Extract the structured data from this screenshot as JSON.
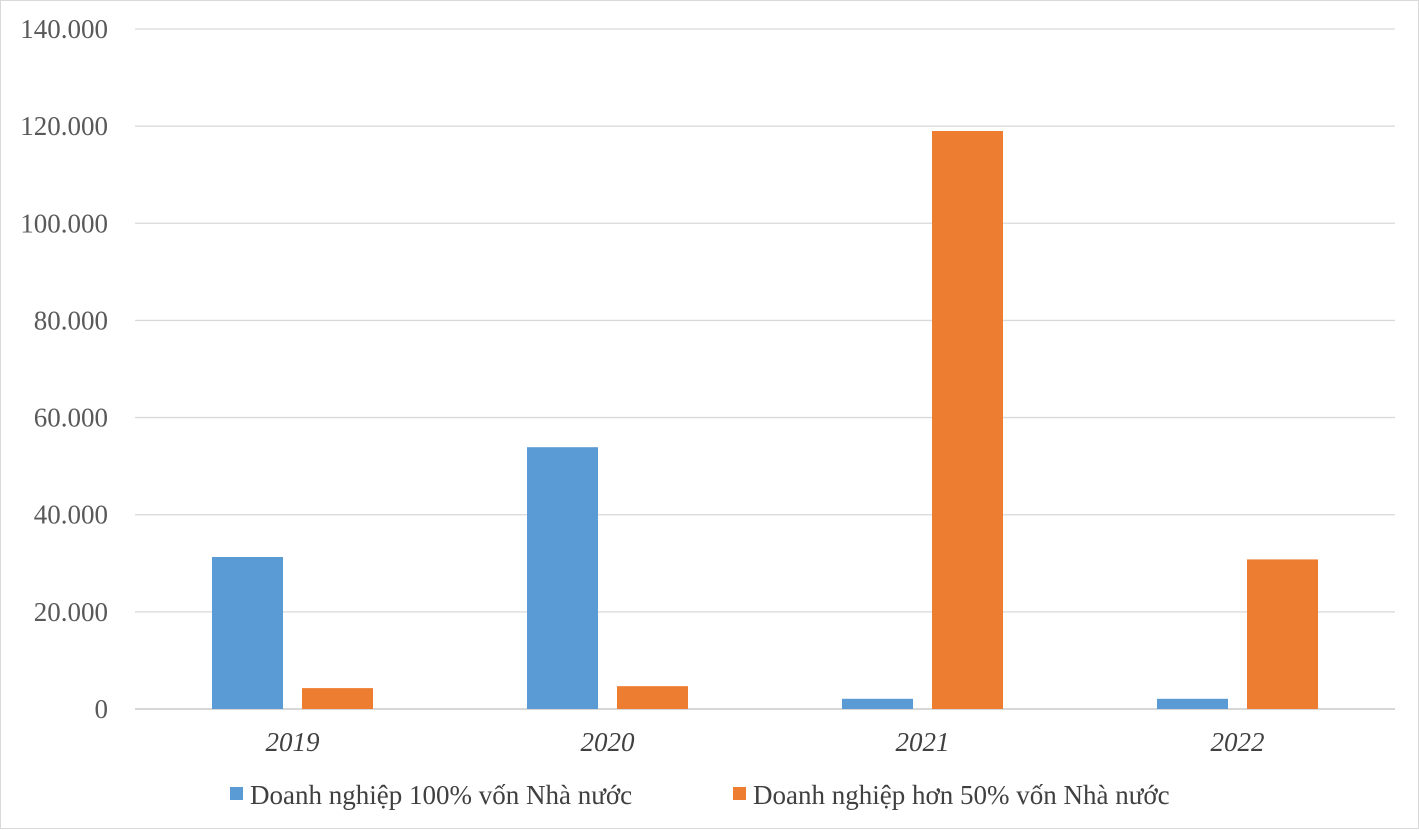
{
  "chart_data": {
    "type": "bar",
    "title": "",
    "xlabel": "",
    "ylabel": "",
    "categories": [
      "2019",
      "2020",
      "2021",
      "2022"
    ],
    "series": [
      {
        "name": "Doanh nghiệp 100% vốn Nhà nước",
        "color": "#5b9bd5",
        "values": [
          31300,
          53900,
          2100,
          2100
        ]
      },
      {
        "name": "Doanh nghiệp hơn 50% vốn Nhà nước",
        "color": "#ed7d31",
        "values": [
          4300,
          4700,
          119000,
          30800
        ]
      }
    ],
    "ylim": [
      0,
      140000
    ],
    "yticks": [
      0,
      20000,
      40000,
      60000,
      80000,
      100000,
      120000,
      140000
    ],
    "ytick_labels": [
      "0",
      "20.000",
      "40.000",
      "60.000",
      "80.000",
      "100.000",
      "120.000",
      "140.000"
    ],
    "grid": true,
    "legend_position": "bottom"
  }
}
